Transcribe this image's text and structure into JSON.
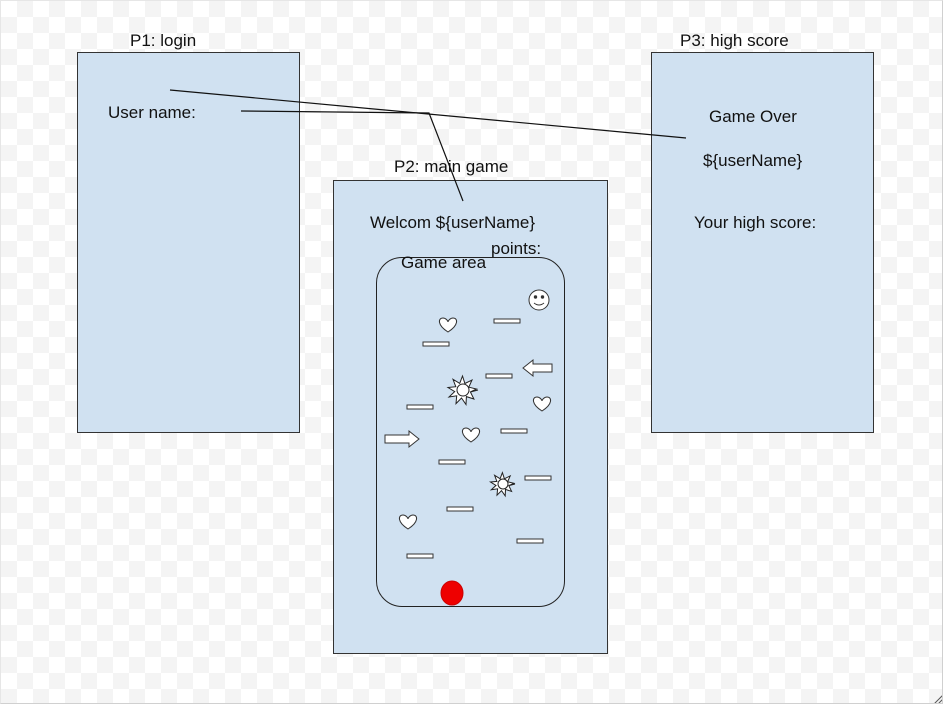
{
  "pages": {
    "login": {
      "title": "P1: login",
      "username_label": "User name:"
    },
    "main_game": {
      "title": "P2: main game",
      "welcome": "Welcom ${userName}",
      "points_label": "points:",
      "game_area_label": "Game area"
    },
    "high_score": {
      "title": "P3: high score",
      "game_over": "Game Over",
      "username_var": "${userName}",
      "high_score_label": "Your high score:"
    }
  },
  "game_items": {
    "hearts": 4,
    "platforms": 12,
    "suns": 2,
    "arrows": [
      "left",
      "right"
    ],
    "smiley": 1,
    "ball_color": "#ee0000"
  },
  "colors": {
    "page_fill": "#d0e1f1",
    "stroke": "#333333"
  }
}
